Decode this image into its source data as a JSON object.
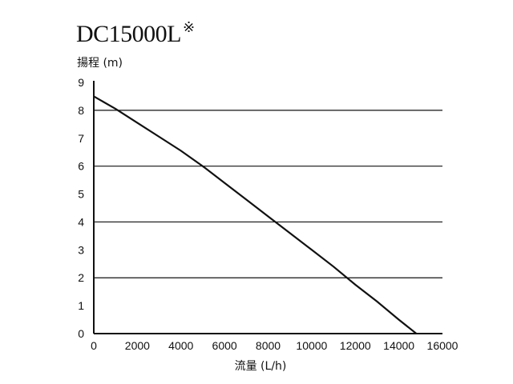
{
  "chart_data": {
    "type": "line",
    "title": "DC15000L",
    "title_mark": "※",
    "ylabel": "揚程 (m)",
    "xlabel": "流量 (L/h)",
    "xlim": [
      0,
      16000
    ],
    "ylim": [
      0,
      9
    ],
    "xticks": [
      0,
      2000,
      4000,
      6000,
      8000,
      10000,
      12000,
      14000,
      16000
    ],
    "yticks": [
      0,
      1,
      2,
      3,
      4,
      5,
      6,
      7,
      8,
      9
    ],
    "gridlines_y": [
      2,
      4,
      6,
      8
    ],
    "grid": "horizontal",
    "legend": "none",
    "series": [
      {
        "x": [
          0,
          1000,
          2000,
          3000,
          4000,
          5000,
          6000,
          7000,
          8000,
          9000,
          10000,
          11000,
          12000,
          13000,
          14000,
          14800
        ],
        "y": [
          8.5,
          8.05,
          7.55,
          7.05,
          6.55,
          6.0,
          5.4,
          4.8,
          4.2,
          3.6,
          3.0,
          2.4,
          1.75,
          1.15,
          0.5,
          0.0
        ],
        "color": "#111111"
      }
    ]
  }
}
